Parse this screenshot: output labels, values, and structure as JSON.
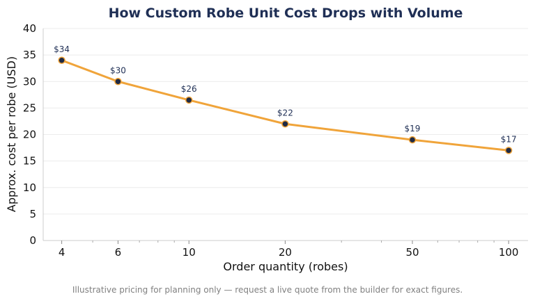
{
  "chart_data": {
    "type": "line",
    "title": "How Custom Robe Unit Cost Drops with Volume",
    "xlabel": "Order quantity (robes)",
    "ylabel": "Approx. cost per robe (USD)",
    "x_scale": "log",
    "x": [
      4,
      6,
      10,
      20,
      50,
      100
    ],
    "x_ticks": [
      "4",
      "6",
      "10",
      "20",
      "50",
      "100"
    ],
    "xlim": [
      3.5,
      115
    ],
    "series": [
      {
        "values": [
          34,
          30,
          26.5,
          22,
          19,
          17
        ],
        "labels": [
          "$34",
          "$30",
          "$26",
          "$22",
          "$19",
          "$17"
        ]
      }
    ],
    "ylim": [
      0,
      40
    ],
    "y_ticks": [
      "0",
      "5",
      "10",
      "15",
      "20",
      "25",
      "30",
      "35",
      "40"
    ],
    "grid": "horizontal",
    "footnote": "Illustrative pricing for planning only — request a live quote from the builder for exact figures.",
    "colors": {
      "line": "#f0a43a",
      "marker_fill": "#1f2a44",
      "title": "#1f2f55",
      "data_label": "#1f2f55",
      "footnote": "#808080",
      "grid": "#ececec",
      "axis": "#cccccc"
    }
  }
}
